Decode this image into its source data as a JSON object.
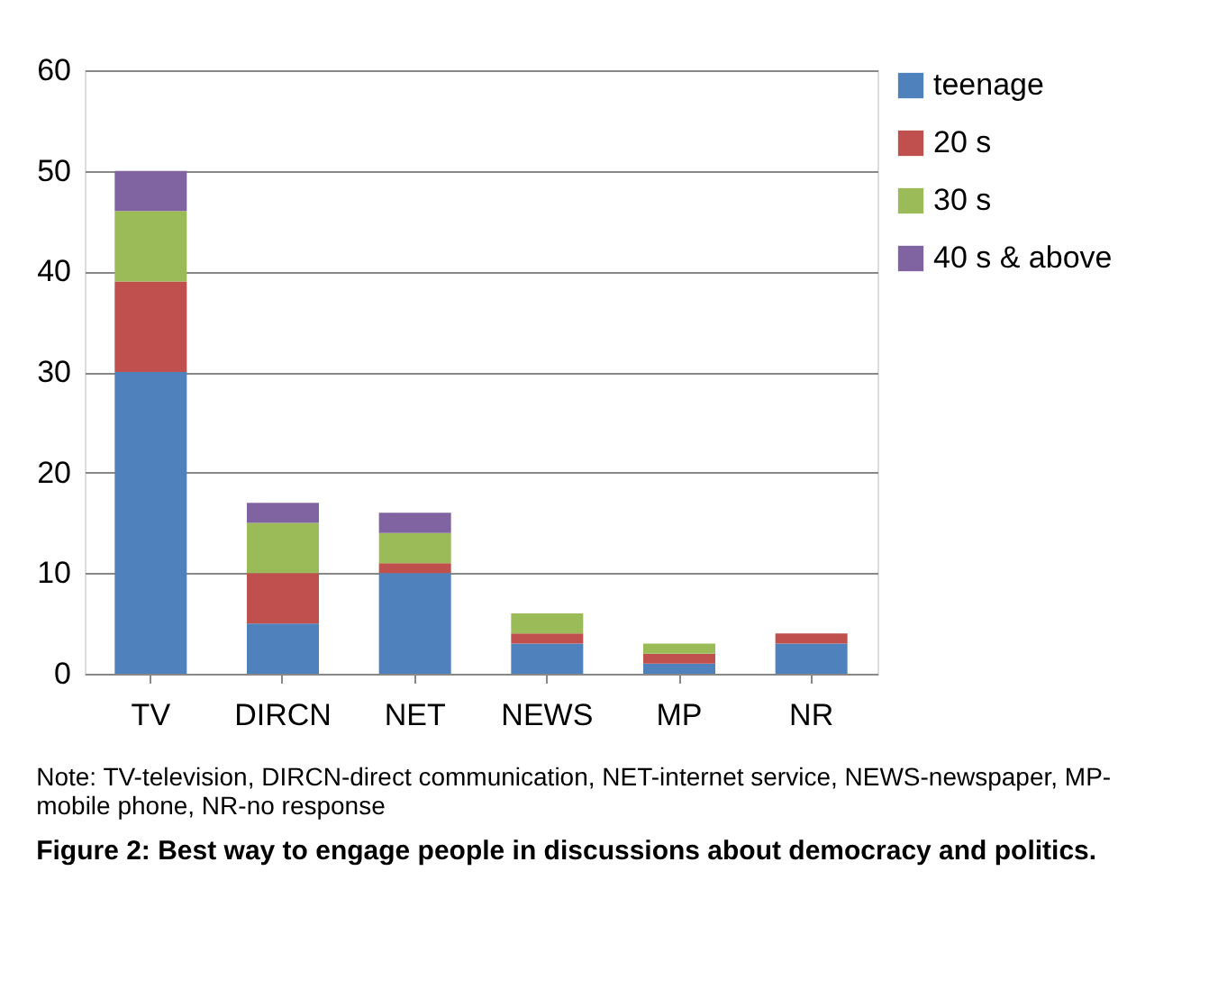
{
  "chart_data": {
    "type": "bar",
    "stacked": true,
    "title": "Figure 2: Best way to engage people in discussions about democracy and politics.",
    "annotations": [
      "Note: TV-television, DIRCN-direct communication, NET-internet service, NEWS-newspaper, MP-mobile phone, NR-no response"
    ],
    "categories": [
      "TV",
      "DIRCN",
      "NET",
      "NEWS",
      "MP",
      "NR"
    ],
    "series": [
      {
        "name": "teenage",
        "color": "#4f81bd",
        "values": [
          30,
          5,
          10,
          3,
          1,
          3
        ]
      },
      {
        "name": "20 s",
        "color": "#c0504d",
        "values": [
          9,
          5,
          1,
          1,
          1,
          1
        ]
      },
      {
        "name": "30 s",
        "color": "#9bbb59",
        "values": [
          7,
          5,
          3,
          2,
          1,
          0
        ]
      },
      {
        "name": "40 s & above",
        "color": "#8064a2",
        "values": [
          4,
          2,
          2,
          0,
          0,
          0
        ]
      }
    ],
    "ylim": [
      0,
      60
    ],
    "yticks": [
      0,
      10,
      20,
      30,
      40,
      50,
      60
    ],
    "grid": "y",
    "legend": "right"
  }
}
